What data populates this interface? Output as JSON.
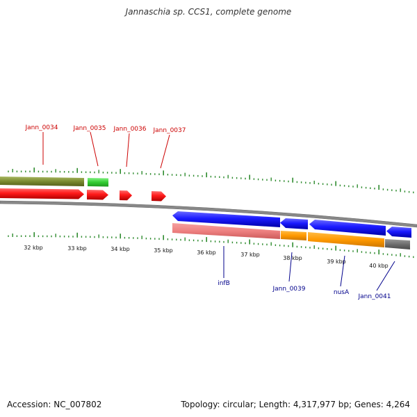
{
  "title": "Jannaschia sp. CCS1, complete genome",
  "footer": {
    "accession": "Accession: NC_007802",
    "summary": "Topology: circular; Length: 4,317,977 bp; Genes: 4,264"
  },
  "colors": {
    "forward_label": "#cc0000",
    "reverse_label": "#00008b",
    "tick": "#2e8b2e",
    "backbone": "#888888"
  },
  "scale_labels": [
    "32 kbp",
    "33 kbp",
    "34 kbp",
    "35 kbp",
    "36 kbp",
    "37 kbp",
    "38 kbp",
    "39 kbp",
    "40 kbp"
  ],
  "forward_genes": [
    {
      "label": "Jann_0034"
    },
    {
      "label": "Jann_0035"
    },
    {
      "label": "Jann_0036"
    },
    {
      "label": "Jann_0037"
    }
  ],
  "reverse_genes": [
    {
      "label": "infB"
    },
    {
      "label": "Jann_0039"
    },
    {
      "label": "nusA"
    },
    {
      "label": "Jann_0041"
    }
  ]
}
